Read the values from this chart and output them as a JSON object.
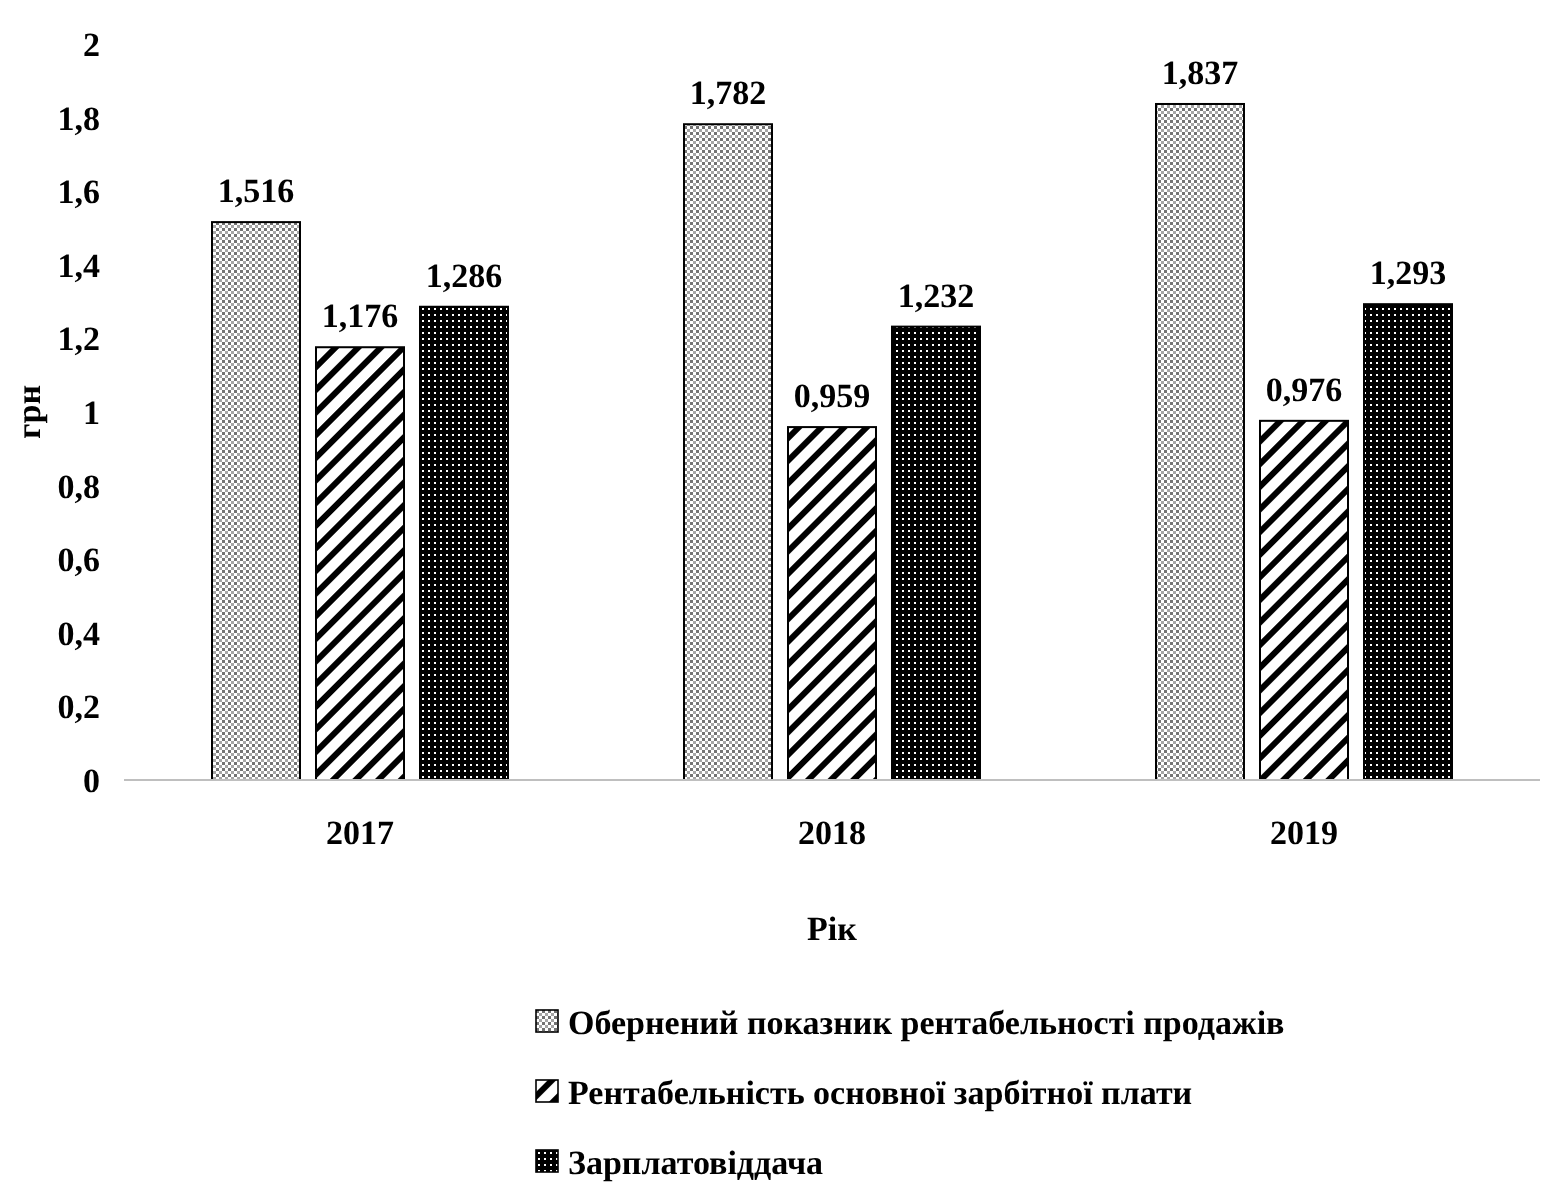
{
  "chart_data": {
    "type": "bar",
    "xlabel": "Рік",
    "ylabel": "грн",
    "categories": [
      "2017",
      "2018",
      "2019"
    ],
    "series": [
      {
        "name": "Обернений показник рентабельності продажів",
        "color": "#000000",
        "values": [
          1.516,
          1.782,
          1.837
        ],
        "value_labels": [
          "1,516",
          "1,782",
          "1,837"
        ]
      },
      {
        "name": "Рентабельність основної зарбітної плати",
        "color": "#000000",
        "values": [
          1.176,
          0.959,
          0.976
        ],
        "value_labels": [
          "1,176",
          "0,959",
          "0,976"
        ]
      },
      {
        "name": "Зарплатовіддача",
        "color": "#000000",
        "values": [
          1.286,
          1.232,
          1.293
        ],
        "value_labels": [
          "1,286",
          "1,232",
          "1,293"
        ]
      }
    ],
    "ylim": [
      0,
      2
    ],
    "yticks": [
      0,
      {
        "value": 0.2,
        "label": "0,2"
      },
      {
        "value": 0.4,
        "label": "0,4"
      },
      {
        "value": 0.6,
        "label": "0,6"
      },
      {
        "value": 0.8,
        "label": "0,8"
      },
      1,
      {
        "value": 1.2,
        "label": "1,2"
      },
      {
        "value": 1.4,
        "label": "1,4"
      },
      {
        "value": 1.6,
        "label": "1,6"
      },
      {
        "value": 1.8,
        "label": "1,8"
      },
      2
    ],
    "legend": "bottom"
  }
}
